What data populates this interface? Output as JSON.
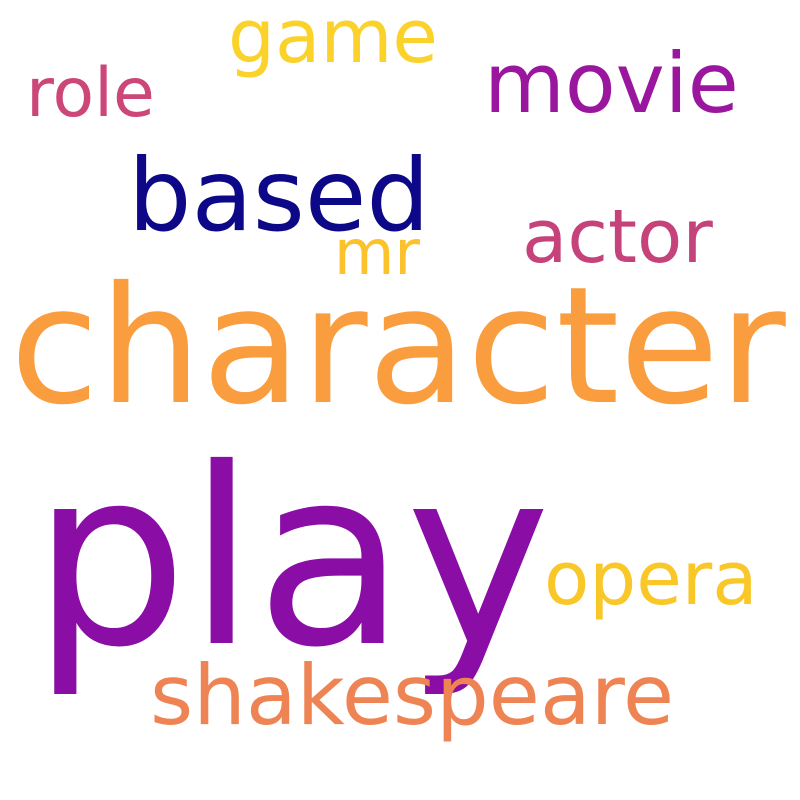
{
  "background": "#ffffff",
  "words": [
    {
      "key": "play",
      "text": "play",
      "color": "#8a0da6"
    },
    {
      "key": "character",
      "text": "character",
      "color": "#f99d3e"
    },
    {
      "key": "shakespeare",
      "text": "shakespeare",
      "color": "#ee8454"
    },
    {
      "key": "based",
      "text": "based",
      "color": "#0d0887"
    },
    {
      "key": "movie",
      "text": "movie",
      "color": "#9a169f"
    },
    {
      "key": "actor",
      "text": "actor",
      "color": "#c5427b"
    },
    {
      "key": "opera",
      "text": "opera",
      "color": "#fac728"
    },
    {
      "key": "game",
      "text": "game",
      "color": "#fbd22a"
    },
    {
      "key": "role",
      "text": "role",
      "color": "#cc4778"
    },
    {
      "key": "mr",
      "text": "mr",
      "color": "#fbc22c"
    }
  ]
}
